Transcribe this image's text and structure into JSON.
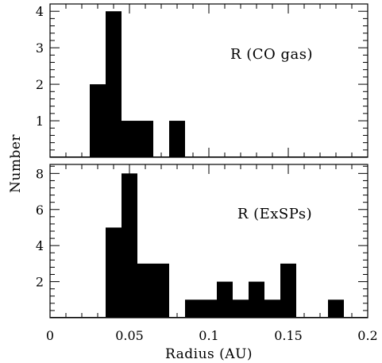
{
  "chart_data": [
    {
      "type": "bar",
      "panel": "top",
      "annotation": "R (CO gas)",
      "ylabel": "Number",
      "xlabel": "Radius (AU)",
      "xlim": [
        0,
        0.2
      ],
      "ylim": [
        0,
        4.2
      ],
      "y_ticks": [
        1,
        2,
        3,
        4
      ],
      "x_ticks": [
        0,
        0.05,
        0.1,
        0.15,
        0.2
      ],
      "x_tick_labels": [
        "0",
        "0.05",
        "0.1",
        "0.15",
        "0.2"
      ],
      "bin_width": 0.01,
      "bins": [
        {
          "x0": 0.025,
          "x1": 0.035,
          "count": 2
        },
        {
          "x0": 0.035,
          "x1": 0.045,
          "count": 4
        },
        {
          "x0": 0.045,
          "x1": 0.055,
          "count": 1
        },
        {
          "x0": 0.055,
          "x1": 0.065,
          "count": 1
        },
        {
          "x0": 0.075,
          "x1": 0.085,
          "count": 1
        }
      ]
    },
    {
      "type": "bar",
      "panel": "bottom",
      "annotation": "R (ExSPs)",
      "ylabel": "Number",
      "xlabel": "Radius (AU)",
      "xlim": [
        0,
        0.2
      ],
      "ylim": [
        0,
        8.5
      ],
      "y_ticks": [
        2,
        4,
        6,
        8
      ],
      "x_ticks": [
        0,
        0.05,
        0.1,
        0.15,
        0.2
      ],
      "x_tick_labels": [
        "0",
        "0.05",
        "0.1",
        "0.15",
        "0.2"
      ],
      "bin_width": 0.01,
      "bins": [
        {
          "x0": 0.035,
          "x1": 0.045,
          "count": 5
        },
        {
          "x0": 0.045,
          "x1": 0.055,
          "count": 8
        },
        {
          "x0": 0.055,
          "x1": 0.065,
          "count": 3
        },
        {
          "x0": 0.065,
          "x1": 0.075,
          "count": 3
        },
        {
          "x0": 0.085,
          "x1": 0.095,
          "count": 1
        },
        {
          "x0": 0.095,
          "x1": 0.105,
          "count": 1
        },
        {
          "x0": 0.105,
          "x1": 0.115,
          "count": 2
        },
        {
          "x0": 0.115,
          "x1": 0.125,
          "count": 1
        },
        {
          "x0": 0.125,
          "x1": 0.135,
          "count": 2
        },
        {
          "x0": 0.135,
          "x1": 0.145,
          "count": 1
        },
        {
          "x0": 0.145,
          "x1": 0.155,
          "count": 3
        },
        {
          "x0": 0.175,
          "x1": 0.185,
          "count": 1
        }
      ]
    }
  ]
}
